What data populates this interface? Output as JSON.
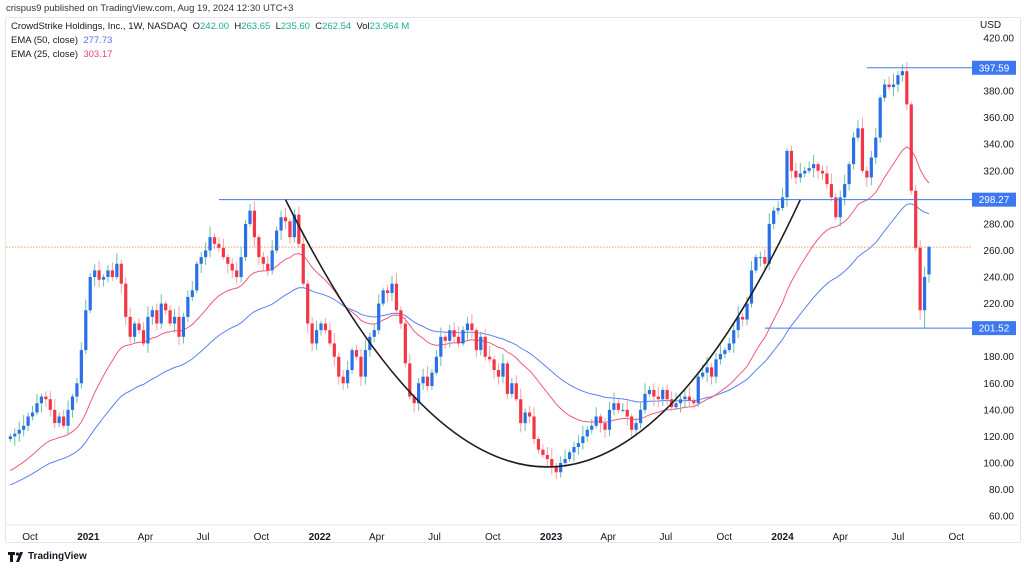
{
  "header": {
    "published": "crispus9 published on TradingView.com, Aug 19, 2024 12:30 UTC+3"
  },
  "legend": {
    "symbol": "CrowdStrike Holdings, Inc., 1W, NASDAQ",
    "o_label": "O",
    "o": "242.00",
    "h_label": "H",
    "h": "263.65",
    "l_label": "L",
    "l": "235.60",
    "c_label": "C",
    "c": "262.54",
    "vol_label": "Vol",
    "vol": "23.964 M",
    "ema50_label": "EMA (50, close)",
    "ema50": "277.73",
    "ema25_label": "EMA (25, close)",
    "ema25": "303.17"
  },
  "currency": "USD",
  "footer": {
    "logo_text": "TradingView"
  },
  "colors": {
    "up": "#2a6ee8",
    "down": "#f23645",
    "up_wick": "#6cc0a8",
    "down_wick": "#f5a0a8",
    "ema50": "#5d7ff5",
    "ema25": "#f2587c",
    "level": "#3d78f0",
    "price_line": "#f5a35c",
    "cup": "#1e1e1e"
  },
  "chart_data": {
    "type": "candlestick",
    "timeframe": "1W",
    "last_bar_date": "2024-08-19",
    "last_bar": {
      "open": 242.0,
      "high": 263.65,
      "low": 235.6,
      "close": 262.54
    },
    "close": [
      120,
      122,
      125,
      128,
      135,
      138,
      145,
      150,
      148,
      140,
      130,
      135,
      128,
      140,
      150,
      160,
      185,
      215,
      240,
      245,
      238,
      240,
      245,
      240,
      250,
      235,
      210,
      195,
      205,
      200,
      190,
      210,
      215,
      205,
      220,
      215,
      205,
      210,
      195,
      210,
      225,
      230,
      250,
      255,
      260,
      270,
      265,
      262,
      255,
      250,
      245,
      240,
      255,
      280,
      290,
      270,
      255,
      250,
      245,
      260,
      275,
      285,
      282,
      270,
      287,
      265,
      235,
      205,
      190,
      200,
      205,
      200,
      190,
      180,
      165,
      160,
      170,
      185,
      180,
      165,
      185,
      195,
      200,
      220,
      230,
      228,
      235,
      215,
      205,
      175,
      150,
      145,
      160,
      165,
      158,
      168,
      180,
      195,
      192,
      200,
      195,
      190,
      200,
      205,
      200,
      185,
      195,
      180,
      178,
      170,
      165,
      175,
      152,
      160,
      148,
      130,
      138,
      135,
      118,
      110,
      106,
      103,
      97,
      93,
      100,
      103,
      108,
      112,
      115,
      120,
      125,
      128,
      135,
      130,
      125,
      140,
      145,
      140,
      140,
      135,
      125,
      130,
      140,
      152,
      155,
      150,
      148,
      155,
      148,
      142,
      145,
      148,
      150,
      147,
      145,
      165,
      168,
      172,
      165,
      178,
      182,
      185,
      190,
      200,
      210,
      208,
      220,
      245,
      255,
      255,
      250,
      280,
      290,
      292,
      300,
      335,
      320,
      315,
      318,
      320,
      322,
      325,
      320,
      318,
      310,
      300,
      285,
      300,
      310,
      325,
      345,
      352,
      320,
      315,
      330,
      345,
      375,
      385,
      383,
      385,
      392,
      395,
      370,
      305,
      262,
      215,
      240,
      262.54
    ],
    "indicators": [
      {
        "name": "EMA (50, close)",
        "period": 50
      },
      {
        "name": "EMA (25, close)",
        "period": 25
      }
    ],
    "levels": [
      {
        "value": 397.59,
        "label": "397.59",
        "from": "2024-05-13"
      },
      {
        "value": 298.27,
        "label": "298.27",
        "from": "2021-07-26"
      },
      {
        "value": 201.52,
        "label": "201.52",
        "from": "2023-12-04"
      }
    ],
    "current_price": 262.54,
    "cup_pattern": {
      "start": {
        "date": "2021-11-08",
        "value": 298.27
      },
      "bottom": {
        "date": "2022-12-26",
        "value": 97
      },
      "end": {
        "date": "2024-01-29",
        "value": 298.27
      }
    },
    "ylim": [
      60,
      420
    ],
    "yticks": [
      420,
      400,
      380,
      360,
      340,
      320,
      300,
      280,
      260,
      240,
      220,
      200,
      180,
      160,
      140,
      120,
      100,
      80,
      60
    ],
    "ytick_labels": [
      "420.00",
      "380.00",
      "360.00",
      "340.00",
      "320.00",
      "280.00",
      "260.00",
      "240.00",
      "220.00",
      "180.00",
      "160.00",
      "140.00",
      "120.00",
      "100.00",
      "80.00",
      "60.00"
    ],
    "xticks": [
      {
        "date": "2020-10-01",
        "label": "Oct",
        "year": false
      },
      {
        "date": "2021-01-01",
        "label": "2021",
        "year": true
      },
      {
        "date": "2021-04-01",
        "label": "Apr",
        "year": false
      },
      {
        "date": "2021-07-01",
        "label": "Jul",
        "year": false
      },
      {
        "date": "2021-10-01",
        "label": "Oct",
        "year": false
      },
      {
        "date": "2022-01-01",
        "label": "2022",
        "year": true
      },
      {
        "date": "2022-04-01",
        "label": "Apr",
        "year": false
      },
      {
        "date": "2022-07-01",
        "label": "Jul",
        "year": false
      },
      {
        "date": "2022-10-01",
        "label": "Oct",
        "year": false
      },
      {
        "date": "2023-01-01",
        "label": "2023",
        "year": true
      },
      {
        "date": "2023-04-01",
        "label": "Apr",
        "year": false
      },
      {
        "date": "2023-07-01",
        "label": "Jul",
        "year": false
      },
      {
        "date": "2023-10-01",
        "label": "Oct",
        "year": false
      },
      {
        "date": "2024-01-01",
        "label": "2024",
        "year": true
      },
      {
        "date": "2024-04-01",
        "label": "Apr",
        "year": false
      },
      {
        "date": "2024-07-01",
        "label": "Jul",
        "year": false
      },
      {
        "date": "2024-10-01",
        "label": "Oct",
        "year": false
      }
    ],
    "grid": false
  }
}
